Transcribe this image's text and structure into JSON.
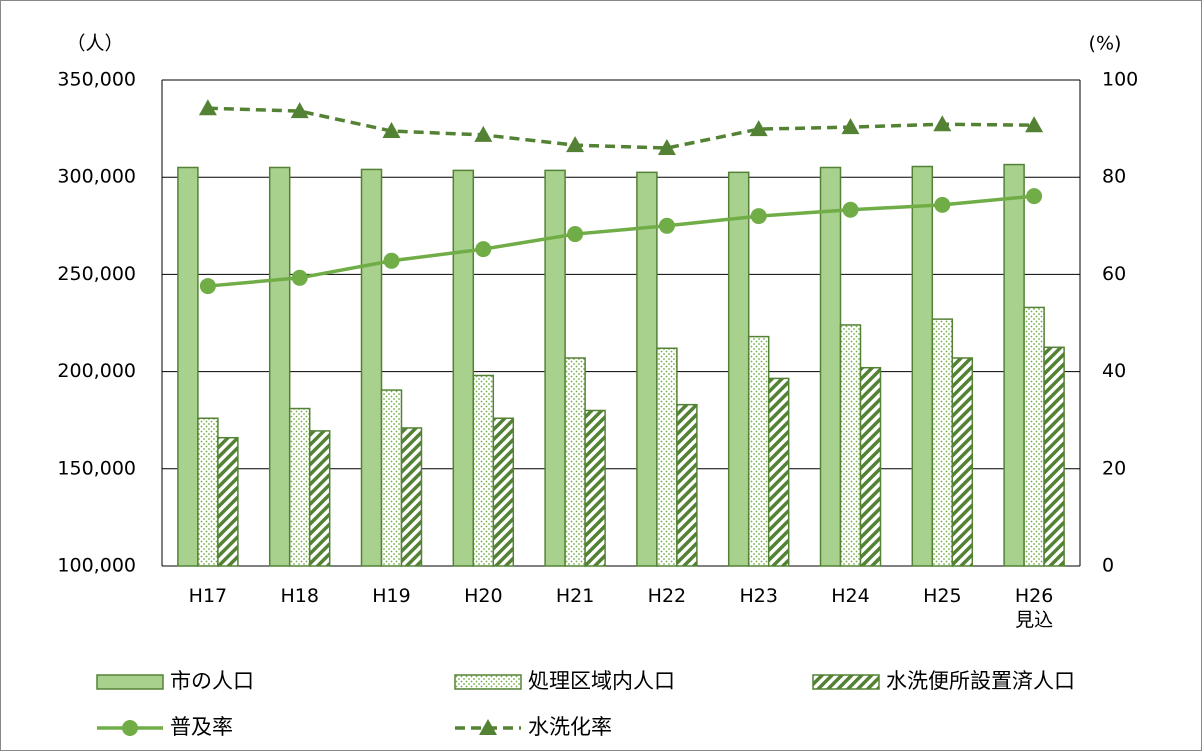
{
  "chart_data": {
    "type": "bar_line",
    "y_axis_label": "（人）",
    "y2_axis_label": "(%)",
    "categories": [
      "H17",
      "H18",
      "H19",
      "H20",
      "H21",
      "H22",
      "H23",
      "H24",
      "H25",
      "H26\n見込"
    ],
    "ylim": [
      100000,
      350000
    ],
    "yticks": [
      {
        "value": 100000,
        "label": "100,000"
      },
      {
        "value": 150000,
        "label": "150,000"
      },
      {
        "value": 200000,
        "label": "200,000"
      },
      {
        "value": 250000,
        "label": "250,000"
      },
      {
        "value": 300000,
        "label": "300,000"
      },
      {
        "value": 350000,
        "label": "350,000"
      }
    ],
    "y2lim": [
      0,
      100
    ],
    "y2ticks": [
      0,
      20,
      40,
      60,
      80,
      100
    ],
    "grid": true,
    "series": [
      {
        "name": "市の人口",
        "kind": "bar",
        "pattern": "solid",
        "color": "#a9d18e",
        "values": [
          305000,
          305000,
          304000,
          303500,
          303500,
          302500,
          302500,
          305000,
          305500,
          306500
        ]
      },
      {
        "name": "処理区域内人口",
        "kind": "bar",
        "pattern": "dots",
        "color": "#70ad47",
        "values": [
          176000,
          181000,
          190500,
          198000,
          207000,
          212000,
          218000,
          224000,
          227000,
          233000
        ]
      },
      {
        "name": "水洗便所設置済人口",
        "kind": "bar",
        "pattern": "hatch",
        "color": "#548235",
        "values": [
          166000,
          169500,
          171000,
          176000,
          180000,
          183000,
          196500,
          202000,
          207000,
          212500
        ]
      },
      {
        "name": "普及率",
        "kind": "line",
        "axis": "y2",
        "marker": "circle",
        "dashed": false,
        "color": "#70ad47",
        "values": [
          57.6,
          59.3,
          62.8,
          65.2,
          68.3,
          70.0,
          72.0,
          73.3,
          74.3,
          76.1
        ]
      },
      {
        "name": "水洗化率",
        "kind": "line",
        "axis": "y2",
        "marker": "triangle",
        "dashed": true,
        "color": "#548235",
        "values": [
          94.2,
          93.6,
          89.5,
          88.7,
          86.6,
          86.0,
          89.9,
          90.3,
          90.9,
          90.7
        ]
      }
    ]
  }
}
